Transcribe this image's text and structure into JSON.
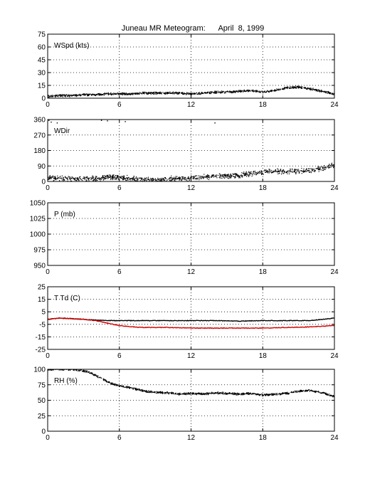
{
  "title": "Juneau MR Meteogram:      April  8, 1999",
  "chart_data": [
    {
      "type": "scatter",
      "label": "WSpd (kts)",
      "xlim": [
        0,
        24
      ],
      "xticks": [
        0,
        6,
        12,
        18,
        24
      ],
      "ylim": [
        0,
        75
      ],
      "yticks": [
        0,
        15,
        30,
        45,
        60,
        75
      ],
      "grid": true,
      "series": [
        {
          "color": "#000000",
          "x": [
            0,
            1,
            2,
            3,
            4,
            5,
            6,
            7,
            8,
            9,
            10,
            11,
            12,
            13,
            14,
            15,
            16,
            17,
            18,
            19,
            20,
            21,
            22,
            23,
            24
          ],
          "y": [
            2,
            3,
            3,
            4,
            4,
            5,
            5,
            5,
            6,
            6,
            6,
            6,
            5,
            6,
            7,
            7,
            8,
            9,
            7,
            9,
            12,
            13,
            11,
            8,
            5
          ]
        }
      ]
    },
    {
      "type": "scatter",
      "label": "WDir",
      "xlim": [
        0,
        24
      ],
      "xticks": [
        0,
        6,
        12,
        18,
        24
      ],
      "ylim": [
        0,
        360
      ],
      "yticks": [
        0,
        90,
        180,
        270,
        360
      ],
      "grid": true,
      "series": [
        {
          "color": "#000000",
          "x": [
            0,
            1,
            2,
            3,
            4,
            5,
            6,
            7,
            8,
            9,
            10,
            11,
            12,
            13,
            14,
            15,
            16,
            17,
            18,
            19,
            20,
            21,
            22,
            23,
            24
          ],
          "y": [
            20,
            20,
            15,
            18,
            15,
            25,
            25,
            15,
            12,
            10,
            15,
            15,
            20,
            25,
            30,
            30,
            35,
            45,
            55,
            60,
            55,
            60,
            65,
            75,
            95
          ]
        },
        {
          "color": "#000000",
          "x": [
            0.1,
            0.3,
            0.8,
            4.5,
            5.0,
            6.5,
            14.0
          ],
          "y": [
            355,
            345,
            340,
            355,
            352,
            348,
            340
          ]
        }
      ]
    },
    {
      "type": "scatter",
      "label": "P (mb)",
      "xlim": [
        0,
        24
      ],
      "xticks": [
        0,
        6,
        12,
        18,
        24
      ],
      "ylim": [
        950,
        1050
      ],
      "yticks": [
        950,
        975,
        1000,
        1025,
        1050
      ],
      "grid": true,
      "series": []
    },
    {
      "type": "line",
      "label": "T Td (C)",
      "xlim": [
        0,
        24
      ],
      "xticks": [
        0,
        6,
        12,
        18,
        24
      ],
      "ylim": [
        -25,
        25
      ],
      "yticks": [
        -25,
        -15,
        -5,
        5,
        15,
        25
      ],
      "grid": true,
      "series": [
        {
          "color": "#000000",
          "x": [
            0,
            1,
            2,
            3,
            4,
            5,
            6,
            8,
            10,
            12,
            14,
            16,
            18,
            20,
            22,
            23,
            24
          ],
          "y": [
            -1,
            0,
            -0.5,
            -1,
            -1.5,
            -2,
            -2,
            -2,
            -2,
            -2,
            -2,
            -2.5,
            -2,
            -2,
            -2,
            -1,
            0
          ]
        },
        {
          "color": "#d40000",
          "x": [
            0,
            1,
            2,
            3,
            4,
            5,
            6,
            7,
            8,
            10,
            12,
            14,
            16,
            18,
            20,
            22,
            23,
            24
          ],
          "y": [
            -1,
            0,
            -0.5,
            -1,
            -2,
            -4,
            -6,
            -7,
            -7.5,
            -7.5,
            -8,
            -8,
            -8,
            -8,
            -7.5,
            -7,
            -6.5,
            -6
          ]
        }
      ]
    },
    {
      "type": "scatter",
      "label": "RH (%)",
      "xlim": [
        0,
        24
      ],
      "xticks": [
        0,
        6,
        12,
        18,
        24
      ],
      "ylim": [
        0,
        100
      ],
      "yticks": [
        0,
        25,
        50,
        75,
        100
      ],
      "grid": true,
      "series": [
        {
          "color": "#000000",
          "x": [
            0,
            1,
            2,
            2.5,
            3,
            3.5,
            4,
            4.5,
            5,
            5.5,
            6,
            6.5,
            7,
            8,
            9,
            10,
            11,
            12,
            13,
            14,
            15,
            16,
            17,
            18,
            19,
            20,
            21,
            22,
            23,
            24
          ],
          "y": [
            100,
            100,
            100,
            99,
            97,
            95,
            90,
            85,
            80,
            76,
            73,
            72,
            70,
            65,
            63,
            62,
            60,
            61,
            60,
            62,
            61,
            60,
            61,
            58,
            60,
            61,
            65,
            66,
            62,
            56
          ]
        }
      ]
    }
  ]
}
